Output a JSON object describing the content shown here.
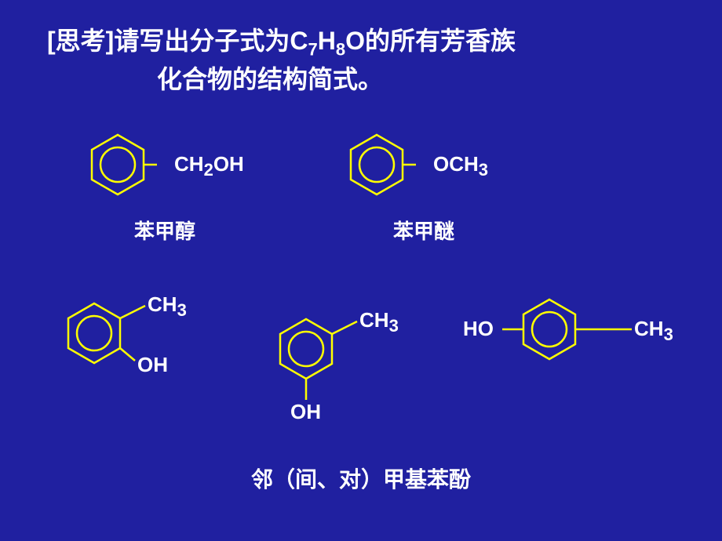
{
  "background_color": "#2020a0",
  "stroke_color": "#ffff00",
  "text_color": "#ffffff",
  "title": {
    "prefix": "[思考]",
    "line1_a": "请写出分子式为C",
    "sub1": "7",
    "line1_b": "H",
    "sub2": "8",
    "line1_c": "O的所有芳香族",
    "line2": "化合物的结构简式。"
  },
  "compounds": {
    "benzyl_alcohol": {
      "subst_html": "CH<span class='sub'>2</span>OH",
      "label": "苯甲醇"
    },
    "anisole": {
      "subst_html": "OCH<span class='sub'>3</span>",
      "label": "苯甲醚"
    },
    "o_cresol": {
      "ch3_html": "CH<span class='sub'>3</span>",
      "oh": "OH"
    },
    "m_cresol": {
      "ch3_html": "CH<span class='sub'>3</span>",
      "oh": "OH"
    },
    "p_cresol": {
      "ho": "HO",
      "ch3_html": "CH<span class='sub'>3</span>"
    },
    "cresol_label": "邻（间、对）甲基苯酚"
  }
}
